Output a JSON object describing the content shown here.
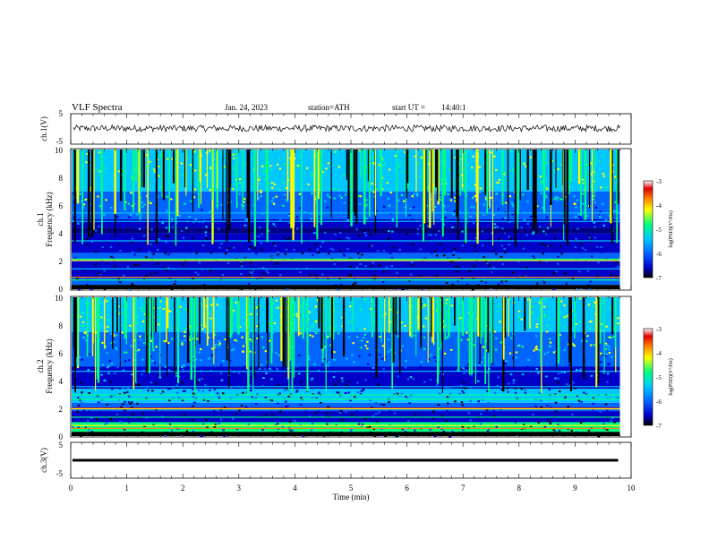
{
  "header": {
    "title": "VLF Spectra",
    "date": "Jan. 24, 2023",
    "station": "station=ATH",
    "start_label": "start UT =",
    "start_time": "14:40:1"
  },
  "colors": {
    "spectrogram_colormap": [
      "#000000",
      "#0000c8",
      "#0064ff",
      "#00c8ff",
      "#00ff80",
      "#ffff00",
      "#ff8000",
      "#e00000",
      "#ffffff"
    ],
    "trace": "#000000"
  },
  "chart_data": [
    {
      "type": "line",
      "name": "ch1-waveform",
      "ylabel": "ch.1(V)",
      "yticks": [
        "5",
        "-5"
      ],
      "ylim": [
        -5,
        5
      ],
      "xlim": [
        0,
        10
      ],
      "series": [
        {
          "values_description_level": 0.2,
          "noise_amplitude": 0.6
        }
      ]
    },
    {
      "type": "heatmap",
      "name": "ch1-spectrogram",
      "ylabel": "ch.1 Frequency (kHz)",
      "yticks": [
        "0",
        "2",
        "4",
        "6",
        "8",
        "10"
      ],
      "ylim": [
        0,
        10
      ],
      "xlim": [
        0,
        9.8
      ],
      "colorbar": {
        "label": "log(PSD)(V²/Hz)",
        "ticks": [
          "-3",
          "-4",
          "-5",
          "-6",
          "-7"
        ],
        "range": [
          -7,
          -3
        ]
      }
    },
    {
      "type": "heatmap",
      "name": "ch2-spectrogram",
      "ylabel": "ch.2 Frequency (kHz)",
      "yticks": [
        "0",
        "2",
        "4",
        "6",
        "8",
        "10"
      ],
      "ylim": [
        0,
        10
      ],
      "xlim": [
        0,
        9.8
      ],
      "colorbar": {
        "label": "log(PSD)(V²/Hz)",
        "ticks": [
          "-3",
          "-4",
          "-5",
          "-6",
          "-7"
        ],
        "range": [
          -7,
          -3
        ]
      }
    },
    {
      "type": "line",
      "name": "ch3-waveform",
      "ylabel": "ch.3(V)",
      "yticks": [
        "5",
        "-5"
      ],
      "ylim": [
        -5,
        5
      ],
      "xlim": [
        0,
        10
      ],
      "series": [
        {
          "constant_level": 0
        }
      ]
    }
  ],
  "xaxis": {
    "label": "Time (min)",
    "ticks": [
      "0",
      "1",
      "2",
      "3",
      "4",
      "5",
      "6",
      "7",
      "8",
      "9",
      "10"
    ],
    "range": [
      0,
      10
    ]
  }
}
